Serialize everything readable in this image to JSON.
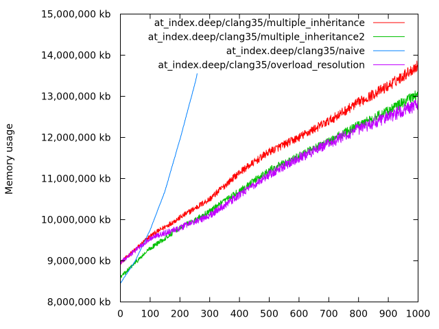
{
  "chart_data": {
    "type": "line",
    "title": "",
    "xlabel": "",
    "ylabel": "Memory usage",
    "xlim": [
      0,
      1000
    ],
    "ylim": [
      8000000,
      15000000
    ],
    "x_ticks": [
      0,
      100,
      200,
      300,
      400,
      500,
      600,
      700,
      800,
      900,
      1000
    ],
    "y_ticks": [
      8000000,
      9000000,
      10000000,
      11000000,
      12000000,
      13000000,
      14000000,
      15000000
    ],
    "y_tick_labels": [
      "8,000,000 kb",
      "9,000,000 kb",
      "10,000,000 kb",
      "11,000,000 kb",
      "12,000,000 kb",
      "13,000,000 kb",
      "14,000,000 kb",
      "15,000,000 kb"
    ],
    "grid": false,
    "legend_position": "top-right",
    "series": [
      {
        "name": "at_index.deep/clang35/multiple_inheritance",
        "color": "#ff0000",
        "noise": 140000,
        "x": [
          0,
          100,
          200,
          300,
          400,
          500,
          600,
          700,
          800,
          900,
          1000
        ],
        "y": [
          8950000,
          9600000,
          10050000,
          10500000,
          11150000,
          11650000,
          12000000,
          12400000,
          12850000,
          13250000,
          13750000
        ]
      },
      {
        "name": "at_index.deep/clang35/multiple_inheritance2",
        "color": "#00c000",
        "noise": 130000,
        "x": [
          0,
          100,
          200,
          300,
          400,
          500,
          600,
          700,
          800,
          900,
          1000
        ],
        "y": [
          8600000,
          9300000,
          9800000,
          10200000,
          10700000,
          11200000,
          11550000,
          11900000,
          12300000,
          12650000,
          13050000
        ]
      },
      {
        "name": "at_index.deep/clang35/naive",
        "color": "#0080ff",
        "noise": 25000,
        "x": [
          0,
          50,
          100,
          150,
          200,
          250,
          258
        ],
        "y": [
          8450000,
          9000000,
          9750000,
          10700000,
          11950000,
          13300000,
          13550000
        ]
      },
      {
        "name": "at_index.deep/clang35/overload_resolution",
        "color": "#c000ff",
        "noise": 160000,
        "x": [
          0,
          100,
          200,
          300,
          400,
          500,
          600,
          700,
          800,
          900,
          1000
        ],
        "y": [
          8950000,
          9550000,
          9800000,
          10100000,
          10600000,
          11100000,
          11500000,
          11850000,
          12200000,
          12500000,
          12800000
        ]
      }
    ]
  }
}
